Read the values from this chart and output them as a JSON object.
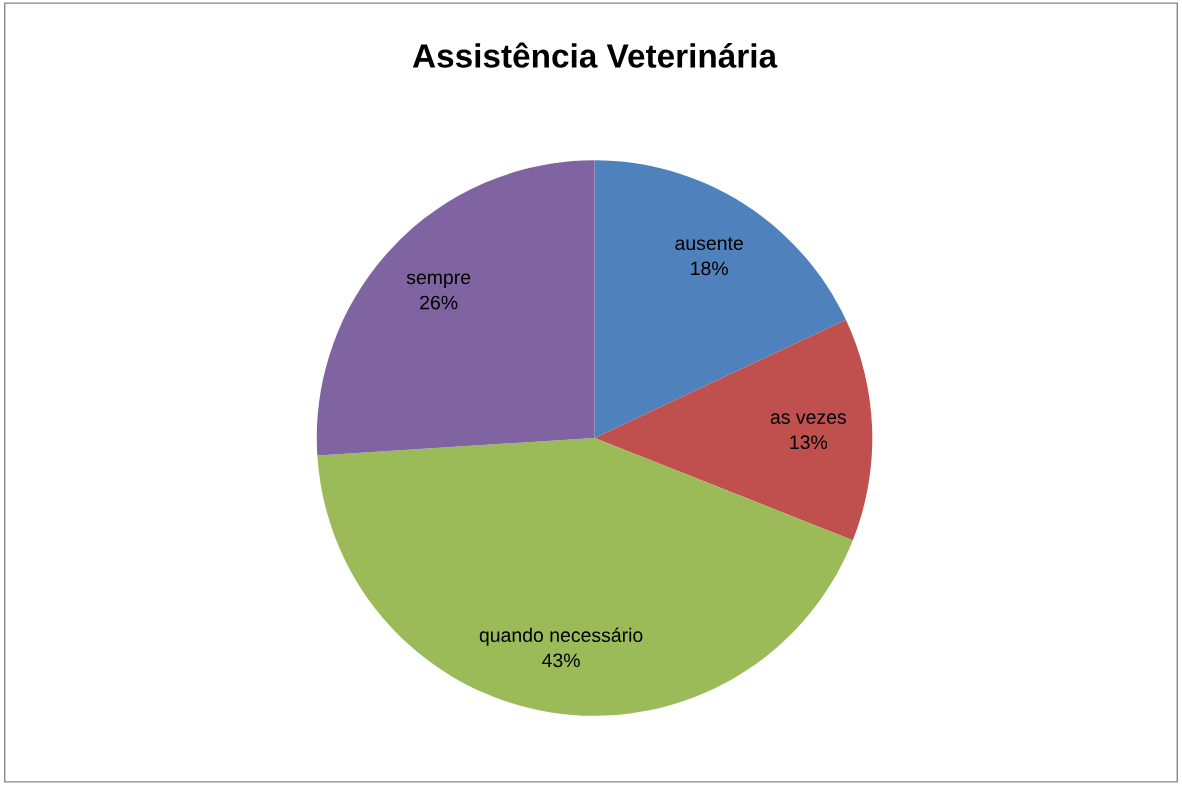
{
  "chart_data": {
    "type": "pie",
    "title": "Assistência Veterinária",
    "categories": [
      "ausente",
      "as vezes",
      "quando necessário",
      "sempre"
    ],
    "values": [
      18,
      13,
      43,
      26
    ],
    "colors": [
      "#4f81bd",
      "#c0504d",
      "#9bbb59",
      "#8064a2"
    ],
    "value_labels": [
      "18%",
      "13%",
      "43%",
      "26%"
    ],
    "legend": false
  }
}
